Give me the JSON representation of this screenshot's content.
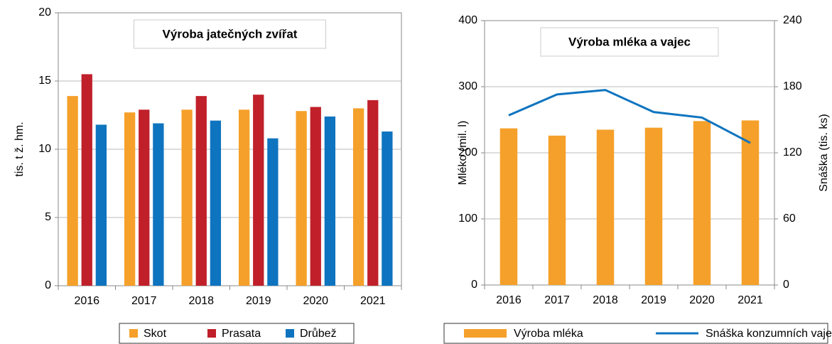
{
  "chart_data": [
    {
      "type": "bar",
      "title": "Výroba jatečných zvířat",
      "y_label": "tis. t ž. hm.",
      "categories": [
        "2016",
        "2017",
        "2018",
        "2019",
        "2020",
        "2021"
      ],
      "series": [
        {
          "name": "Skot",
          "color": "#f5a02a",
          "values": [
            13.9,
            12.7,
            12.9,
            12.9,
            12.8,
            13.0
          ]
        },
        {
          "name": "Prasata",
          "color": "#c0202a",
          "values": [
            15.5,
            12.9,
            13.9,
            14.0,
            13.1,
            13.6
          ]
        },
        {
          "name": "Drůbež",
          "color": "#0e74bf",
          "values": [
            11.8,
            11.9,
            12.1,
            10.8,
            12.4,
            11.3
          ]
        }
      ],
      "ylim": [
        0,
        20
      ],
      "yticks": [
        0,
        5,
        10,
        15,
        20
      ],
      "grid": true,
      "legend": "bottom"
    },
    {
      "type": "bar-line",
      "title": "Výroba mléka a vajec",
      "y_label": "Mléko (mil. l)",
      "y2_label": "Snáška  (tis. ks)",
      "categories": [
        "2016",
        "2017",
        "2018",
        "2019",
        "2020",
        "2021"
      ],
      "series": [
        {
          "name": "Výroba mléka",
          "color": "#f5a02a",
          "type": "bar",
          "values": [
            237,
            226,
            235,
            238,
            248,
            249
          ]
        },
        {
          "name": "Snáška konzumních vajec",
          "color": "#0e74bf",
          "type": "line",
          "axis": "y2",
          "values": [
            154,
            173,
            177,
            157,
            152,
            129
          ]
        }
      ],
      "ylim": [
        0,
        400
      ],
      "yticks": [
        0,
        100,
        200,
        300,
        400
      ],
      "y2lim": [
        0,
        240
      ],
      "y2ticks": [
        0,
        60,
        120,
        180,
        240
      ],
      "grid": true,
      "legend": "bottom"
    }
  ]
}
